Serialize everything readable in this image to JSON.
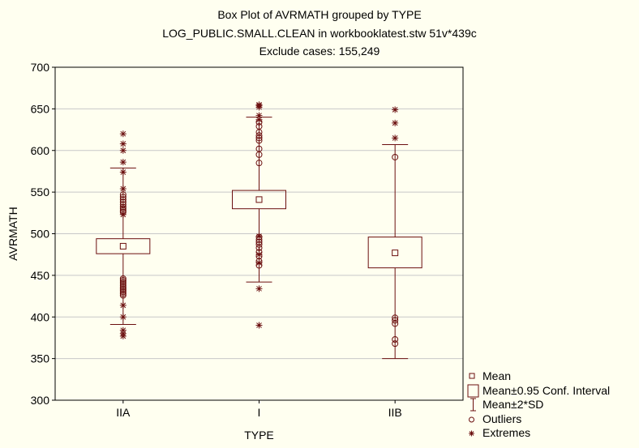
{
  "titles": {
    "line1": "Box Plot of AVRMATH grouped by  TYPE",
    "line2": "LOG_PUBLIC.SMALL.CLEAN in workbooklatest.stw 51v*439c",
    "line3": "Exclude cases: 155,249"
  },
  "legend": {
    "mean": "Mean",
    "ci": "Mean±0.95 Conf. Interval",
    "sd": "Mean±2*SD",
    "outliers": "Outliers",
    "extremes": "Extremes"
  },
  "colors": {
    "stroke": "#6b0f0f",
    "background": "#fffff0",
    "grid": "#c8c8c8"
  },
  "chart_data": {
    "type": "box",
    "title": "Box Plot of AVRMATH grouped by  TYPE",
    "xlabel": "TYPE",
    "ylabel": "AVRMATH",
    "ylim": [
      300,
      700
    ],
    "yticks": [
      300,
      350,
      400,
      450,
      500,
      550,
      600,
      650,
      700
    ],
    "grid": true,
    "legend_position": "bottom-right",
    "categories": [
      "IIA",
      "I",
      "IIB"
    ],
    "groups": [
      {
        "category": "IIA",
        "mean": 485,
        "ci": [
          476,
          494
        ],
        "sd2": [
          391,
          579
        ],
        "outliers": [
          426,
          428,
          430,
          432,
          434,
          436,
          438,
          440,
          442,
          444,
          446,
          526,
          528,
          530,
          532,
          535,
          538,
          541,
          544,
          547
        ],
        "extremes": [
          377,
          380,
          384,
          400,
          414,
          523,
          554,
          574,
          586,
          600,
          608,
          620
        ]
      },
      {
        "category": "I",
        "mean": 541,
        "ci": [
          530,
          552
        ],
        "sd2": [
          442,
          640
        ],
        "outliers": [
          462,
          467,
          473,
          478,
          483,
          487,
          490,
          493,
          496,
          585,
          595,
          602,
          612,
          615,
          618,
          622,
          629,
          634
        ],
        "extremes": [
          390,
          434,
          465,
          475,
          497,
          637,
          642,
          652,
          654,
          655
        ]
      },
      {
        "category": "IIB",
        "mean": 477,
        "ci": [
          459,
          496
        ],
        "sd2": [
          350,
          607
        ],
        "outliers": [
          368,
          373,
          392,
          396,
          399,
          592
        ],
        "extremes": [
          615,
          633,
          649
        ]
      }
    ]
  }
}
